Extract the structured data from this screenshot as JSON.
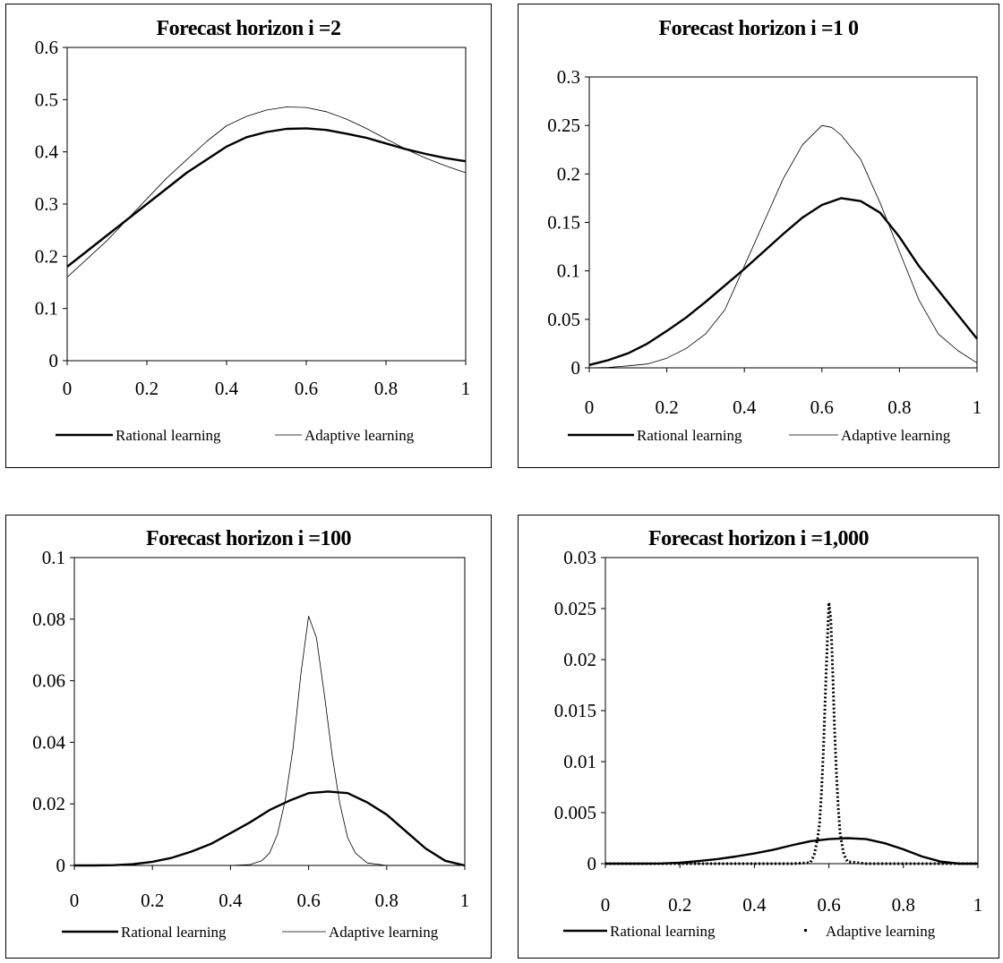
{
  "chart_data": [
    {
      "type": "line",
      "title": "Forecast horizon i =2",
      "xlim": [
        0,
        1
      ],
      "ylim": [
        0,
        0.6
      ],
      "xticks": [
        "0",
        "0.2",
        "0.4",
        "0.6",
        "0.8",
        "1"
      ],
      "yticks": [
        "0",
        "0.1",
        "0.2",
        "0.3",
        "0.4",
        "0.5",
        "0.6"
      ],
      "grid": false,
      "legend_position": "bottom",
      "series": [
        {
          "name": "Rational learning",
          "style": "solid-thick",
          "x": [
            0,
            0.05,
            0.1,
            0.15,
            0.2,
            0.25,
            0.3,
            0.35,
            0.4,
            0.45,
            0.5,
            0.55,
            0.6,
            0.65,
            0.7,
            0.75,
            0.8,
            0.85,
            0.9,
            0.95,
            1
          ],
          "y": [
            0.18,
            0.21,
            0.24,
            0.27,
            0.3,
            0.33,
            0.36,
            0.385,
            0.41,
            0.428,
            0.438,
            0.444,
            0.445,
            0.442,
            0.435,
            0.427,
            0.416,
            0.405,
            0.396,
            0.388,
            0.382
          ]
        },
        {
          "name": "Adaptive learning",
          "style": "thin",
          "x": [
            0,
            0.05,
            0.1,
            0.15,
            0.2,
            0.25,
            0.3,
            0.35,
            0.4,
            0.45,
            0.5,
            0.55,
            0.6,
            0.65,
            0.7,
            0.75,
            0.8,
            0.85,
            0.9,
            0.95,
            1
          ],
          "y": [
            0.16,
            0.195,
            0.23,
            0.27,
            0.31,
            0.35,
            0.385,
            0.42,
            0.45,
            0.468,
            0.48,
            0.486,
            0.485,
            0.477,
            0.463,
            0.445,
            0.425,
            0.405,
            0.388,
            0.373,
            0.36
          ]
        }
      ]
    },
    {
      "type": "line",
      "title": "Forecast horizon i =1 0",
      "xlim": [
        0,
        1
      ],
      "ylim": [
        0,
        0.3
      ],
      "xticks": [
        "0",
        "0.2",
        "0.4",
        "0.6",
        "0.8",
        "1"
      ],
      "yticks": [
        "0",
        "0.05",
        "0.1",
        "0.15",
        "0.2",
        "0.25",
        "0.3"
      ],
      "grid": false,
      "legend_position": "bottom",
      "series": [
        {
          "name": "Rational learning",
          "style": "solid-thick",
          "x": [
            0,
            0.05,
            0.1,
            0.15,
            0.2,
            0.25,
            0.3,
            0.35,
            0.4,
            0.45,
            0.5,
            0.55,
            0.6,
            0.65,
            0.7,
            0.75,
            0.8,
            0.85,
            0.9,
            0.95,
            1
          ],
          "y": [
            0.003,
            0.008,
            0.015,
            0.025,
            0.038,
            0.052,
            0.068,
            0.085,
            0.102,
            0.12,
            0.138,
            0.155,
            0.168,
            0.175,
            0.172,
            0.16,
            0.135,
            0.105,
            0.08,
            0.055,
            0.03
          ]
        },
        {
          "name": "Adaptive learning",
          "style": "thin",
          "x": [
            0,
            0.05,
            0.1,
            0.15,
            0.2,
            0.25,
            0.3,
            0.35,
            0.4,
            0.45,
            0.5,
            0.55,
            0.6,
            0.625,
            0.65,
            0.7,
            0.75,
            0.8,
            0.85,
            0.9,
            0.95,
            1
          ],
          "y": [
            0,
            0.0005,
            0.002,
            0.004,
            0.01,
            0.02,
            0.035,
            0.06,
            0.105,
            0.15,
            0.195,
            0.23,
            0.25,
            0.248,
            0.24,
            0.215,
            0.17,
            0.12,
            0.07,
            0.035,
            0.018,
            0.005
          ]
        }
      ]
    },
    {
      "type": "line",
      "title": "Forecast horizon i =100",
      "xlim": [
        0,
        1
      ],
      "ylim": [
        0,
        0.1
      ],
      "xticks": [
        "0",
        "0.2",
        "0.4",
        "0.6",
        "0.8",
        "1"
      ],
      "yticks": [
        "0",
        "0.02",
        "0.04",
        "0.06",
        "0.08",
        "0.1"
      ],
      "grid": false,
      "legend_position": "bottom",
      "series": [
        {
          "name": "Rational learning",
          "style": "solid-thick",
          "x": [
            0,
            0.05,
            0.1,
            0.15,
            0.2,
            0.25,
            0.3,
            0.35,
            0.4,
            0.45,
            0.5,
            0.55,
            0.6,
            0.65,
            0.7,
            0.75,
            0.8,
            0.85,
            0.9,
            0.95,
            1
          ],
          "y": [
            0,
            0,
            0.0001,
            0.0004,
            0.0012,
            0.0025,
            0.0045,
            0.007,
            0.0105,
            0.014,
            0.018,
            0.021,
            0.0235,
            0.024,
            0.0235,
            0.0205,
            0.0165,
            0.011,
            0.0055,
            0.0015,
            0
          ]
        },
        {
          "name": "Adaptive learning",
          "style": "thin",
          "x": [
            0,
            0.4,
            0.45,
            0.48,
            0.5,
            0.52,
            0.54,
            0.56,
            0.58,
            0.6,
            0.62,
            0.64,
            0.66,
            0.68,
            0.7,
            0.72,
            0.75,
            0.8,
            1
          ],
          "y": [
            0,
            0,
            0.0003,
            0.0015,
            0.004,
            0.01,
            0.021,
            0.038,
            0.062,
            0.081,
            0.074,
            0.056,
            0.036,
            0.02,
            0.009,
            0.004,
            0.0008,
            0,
            0
          ]
        }
      ]
    },
    {
      "type": "line",
      "title": "Forecast horizon i =1,000",
      "xlim": [
        0,
        1
      ],
      "ylim": [
        0,
        0.03
      ],
      "xticks": [
        "0",
        "0.2",
        "0.4",
        "0.6",
        "0.8",
        "1"
      ],
      "yticks": [
        "0",
        "0.005",
        "0.01",
        "0.015",
        "0.02",
        "0.025",
        "0.03"
      ],
      "grid": false,
      "legend_position": "bottom",
      "series": [
        {
          "name": "Rational learning",
          "style": "solid-thick",
          "x": [
            0,
            0.05,
            0.1,
            0.15,
            0.2,
            0.25,
            0.3,
            0.35,
            0.4,
            0.45,
            0.5,
            0.55,
            0.6,
            0.65,
            0.7,
            0.75,
            0.8,
            0.85,
            0.9,
            0.95,
            1
          ],
          "y": [
            0,
            0,
            0,
            2e-05,
            0.0001,
            0.00025,
            0.00045,
            0.0007,
            0.001,
            0.00135,
            0.0018,
            0.0022,
            0.0024,
            0.0025,
            0.0024,
            0.002,
            0.0014,
            0.0007,
            0.0002,
            0,
            0
          ]
        },
        {
          "name": "Adaptive learning",
          "style": "dotted",
          "x": [
            0,
            0.5,
            0.55,
            0.56,
            0.57,
            0.575,
            0.58,
            0.585,
            0.59,
            0.595,
            0.6,
            0.605,
            0.61,
            0.615,
            0.62,
            0.625,
            0.63,
            0.64,
            0.65,
            0.7,
            1
          ],
          "y": [
            0,
            0,
            0.0001,
            0.0008,
            0.0025,
            0.004,
            0.007,
            0.011,
            0.016,
            0.021,
            0.0256,
            0.024,
            0.019,
            0.0135,
            0.009,
            0.0055,
            0.003,
            0.0009,
            0.0002,
            0,
            0
          ]
        }
      ]
    }
  ]
}
